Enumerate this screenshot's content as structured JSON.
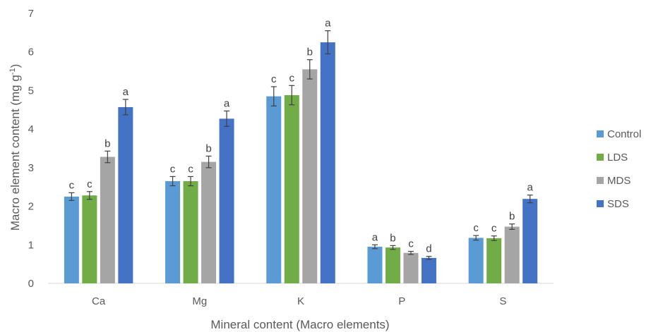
{
  "chart_data": {
    "type": "bar",
    "title": "",
    "xlabel": "Mineral content (Macro elements)",
    "ylabel": "Macro element content (mg g",
    "ylabel_sup": "-1",
    "ylabel_close": ")",
    "ylim": [
      0,
      7
    ],
    "yticks": [
      0,
      1,
      2,
      3,
      4,
      5,
      6,
      7
    ],
    "grid": false,
    "legend_position": "right",
    "categories": [
      "Ca",
      "Mg",
      "K",
      "P",
      "S"
    ],
    "series": [
      {
        "name": "Control",
        "color": "#5b9bd5",
        "values": [
          2.25,
          2.65,
          4.85,
          0.95,
          1.18
        ],
        "errors": [
          0.1,
          0.12,
          0.25,
          0.05,
          0.06
        ],
        "labels": [
          "c",
          "c",
          "c",
          "a",
          "c"
        ]
      },
      {
        "name": "LDS",
        "color": "#70ad47",
        "values": [
          2.28,
          2.65,
          4.88,
          0.93,
          1.17
        ],
        "errors": [
          0.1,
          0.12,
          0.25,
          0.05,
          0.06
        ],
        "labels": [
          "c",
          "c",
          "c",
          "b",
          "c"
        ]
      },
      {
        "name": "MDS",
        "color": "#a5a5a5",
        "values": [
          3.28,
          3.15,
          5.55,
          0.79,
          1.47
        ],
        "errors": [
          0.15,
          0.15,
          0.25,
          0.04,
          0.07
        ],
        "labels": [
          "b",
          "b",
          "b",
          "c",
          "b"
        ]
      },
      {
        "name": "SDS",
        "color": "#4472c4",
        "values": [
          4.57,
          4.27,
          6.25,
          0.66,
          2.19
        ],
        "errors": [
          0.2,
          0.2,
          0.3,
          0.04,
          0.1
        ],
        "labels": [
          "a",
          "a",
          "a",
          "d",
          "a"
        ]
      }
    ]
  }
}
